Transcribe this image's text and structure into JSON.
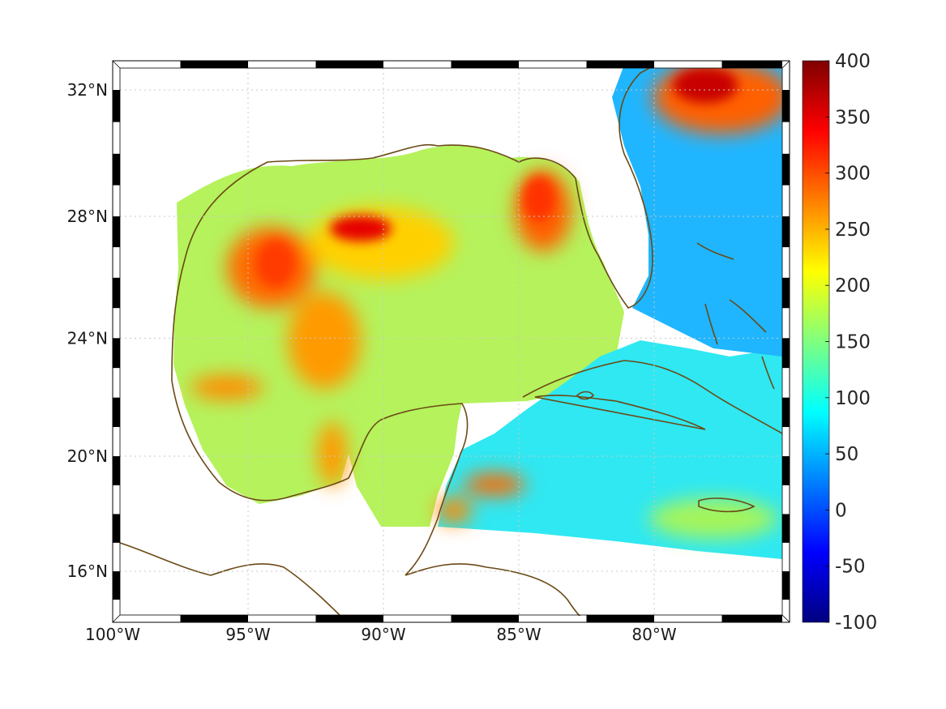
{
  "map": {
    "projection": "mercator",
    "lon_range": [
      -100,
      -75
    ],
    "lat_range": [
      14.2,
      32.9
    ],
    "lon_ticks": [
      {
        "value": -100,
        "label": "100°W"
      },
      {
        "value": -95,
        "label": "95°W"
      },
      {
        "value": -90,
        "label": "90°W"
      },
      {
        "value": -85,
        "label": "85°W"
      },
      {
        "value": -80,
        "label": "80°W"
      }
    ],
    "lat_ticks": [
      {
        "value": 32,
        "label": "32°N"
      },
      {
        "value": 28,
        "label": "28°N"
      },
      {
        "value": 24,
        "label": "24°N"
      },
      {
        "value": 20,
        "label": "20°N"
      },
      {
        "value": 16,
        "label": "16°N"
      }
    ],
    "grid": true,
    "grid_style": "dotted",
    "frame": "black-white striped border",
    "coastline_color": "#6b4a16",
    "field_regions": [
      {
        "name": "gulf-of-mexico",
        "level": 150
      },
      {
        "name": "west-gulf-maximum",
        "level": 300
      },
      {
        "name": "north-gulf-maximum",
        "level": 370
      },
      {
        "name": "west-florida-shelf-maximum",
        "level": 330
      },
      {
        "name": "bay-of-campeche-band",
        "level": 270
      },
      {
        "name": "caribbean-sea",
        "level": 100
      },
      {
        "name": "gulf-of-honduras-maxima",
        "level": 280
      },
      {
        "name": "atlantic-off-florida",
        "level": 90
      },
      {
        "name": "northeast-atlantic-maximum",
        "level": 390
      }
    ]
  },
  "colorbar": {
    "colormap": "jet",
    "min": -100,
    "max": 400,
    "ticks": [
      "400",
      "350",
      "300",
      "250",
      "200",
      "150",
      "100",
      "50",
      "0",
      "-50",
      "-100"
    ]
  },
  "colors": {
    "coastline": "#6b4a16",
    "frame_dark": "#000000",
    "frame_light": "#ffffff"
  }
}
